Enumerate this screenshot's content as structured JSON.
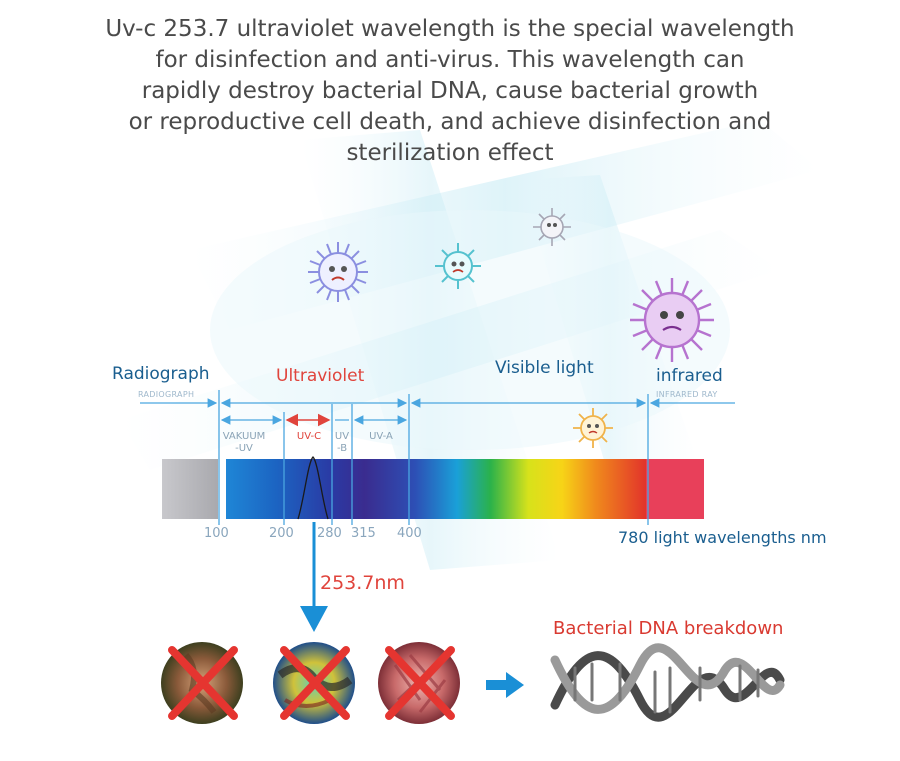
{
  "headline": {
    "lines": [
      "Uv-c 253.7 ultraviolet wavelength is the special wavelength",
      "for disinfection and anti-virus. This wavelength can",
      "rapidly destroy bacterial DNA, cause bacterial growth",
      "or reproductive cell death, and achieve disinfection and",
      "sterilization effect"
    ]
  },
  "bands": {
    "radiograph": {
      "label": "Radiograph",
      "sub": "RADIOGRAPH",
      "color": "#1a5e8f"
    },
    "ultraviolet": {
      "label": "Ultraviolet",
      "color": "#e0443c"
    },
    "visible": {
      "label": "Visible light",
      "color": "#1a5e8f"
    },
    "infrared": {
      "label": "infrared",
      "sub": "INFRARED RAY",
      "color": "#1a5e8f"
    }
  },
  "uv_subbands": {
    "vacuum": "VAKUUM\n-UV",
    "uvc": "UV-C",
    "uvb": "UV\n-B",
    "uva": "UV-A"
  },
  "ticks": [
    "100",
    "200",
    "280",
    "315",
    "400"
  ],
  "axis_title": "780 light wavelengths nm",
  "wavelength_callout": "253.7nm",
  "dna_title": "Bacterial DNA breakdown",
  "colors": {
    "accent_blue": "#1a8fd6",
    "cross_red": "#e53530",
    "headline_text": "#4a4a4a"
  },
  "icons": [
    "virus-icon",
    "bacteria-photo-icon",
    "cross-mark-icon",
    "right-arrow-icon",
    "dna-helix-icon"
  ]
}
